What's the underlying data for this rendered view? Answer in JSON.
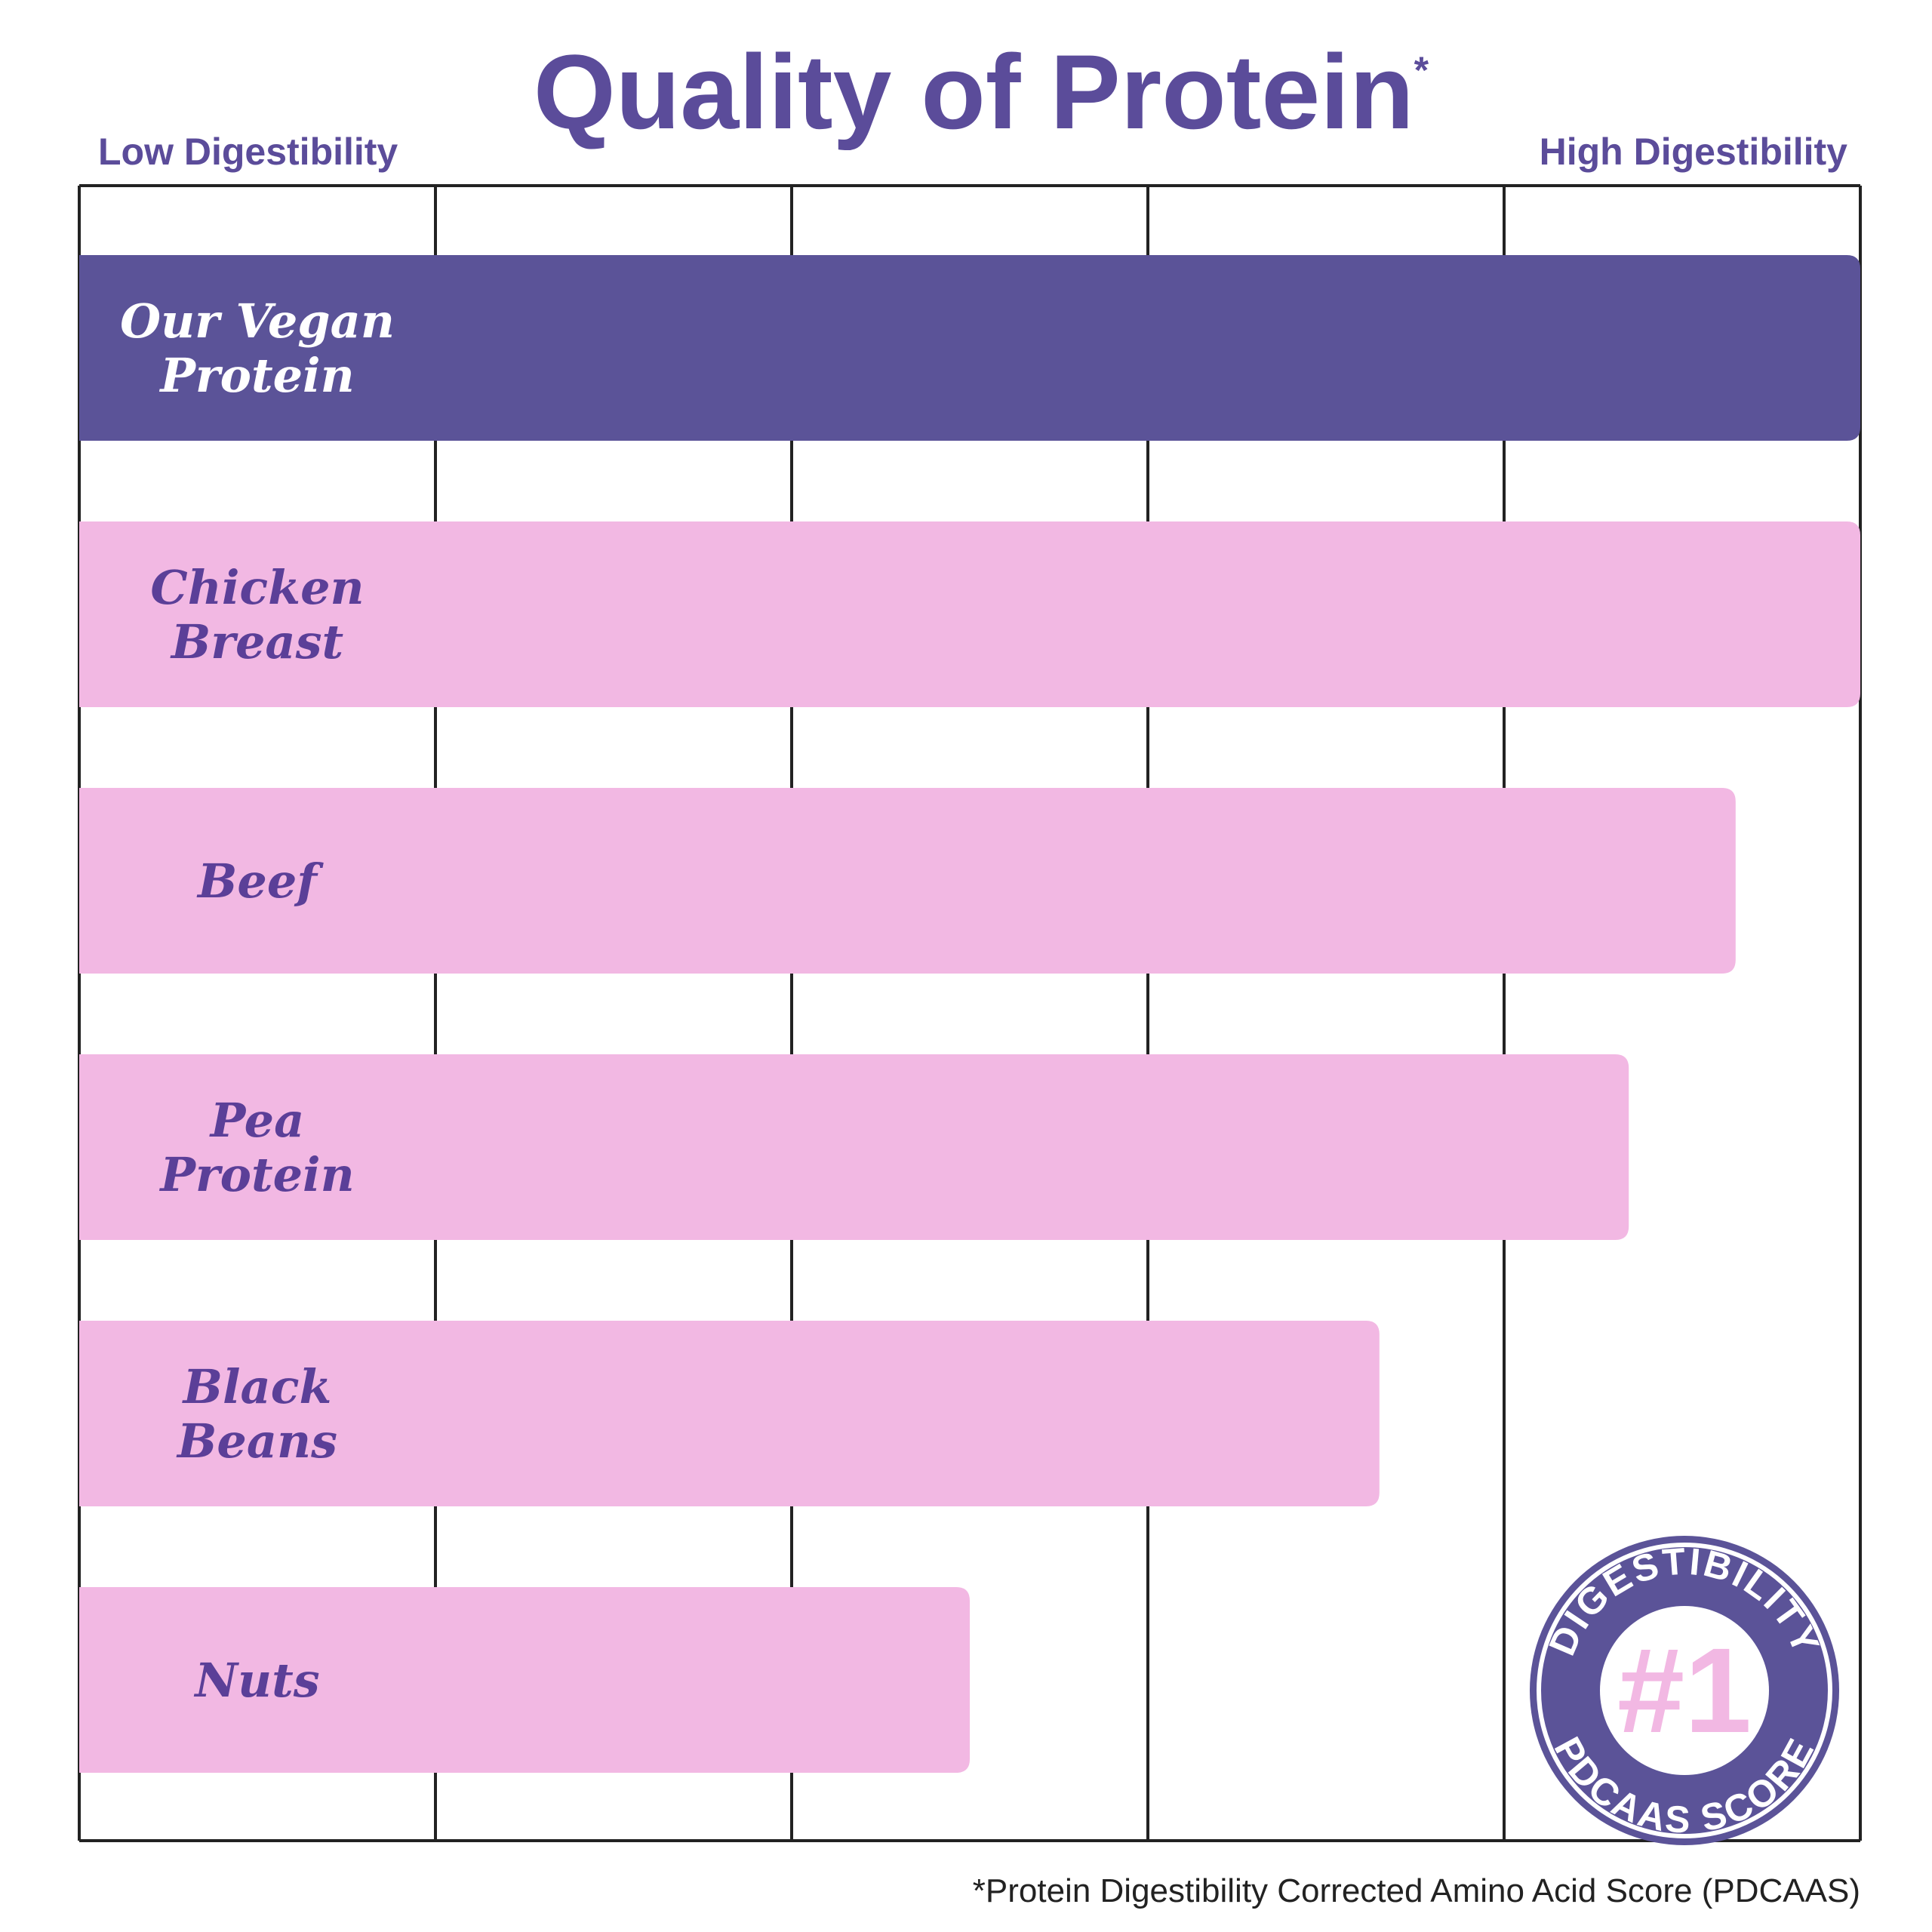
{
  "chart_data": {
    "type": "hbar",
    "title": "Quality of Protein",
    "title_mark": "*",
    "left_label": "Low Digestibility",
    "right_label": "High Digestibility",
    "categories": [
      [
        "Our Vegan",
        "Protein"
      ],
      [
        "Chicken",
        "Breast"
      ],
      [
        "Beef"
      ],
      [
        "Pea",
        "Protein"
      ],
      [
        "Black",
        "Beans"
      ],
      [
        "Nuts"
      ]
    ],
    "values": [
      1,
      1,
      0.93,
      0.87,
      0.73,
      0.5
    ],
    "bar_colors": [
      "#5b5398",
      "#f2b8e3",
      "#f2b8e3",
      "#f2b8e3",
      "#f2b8e3",
      "#f2b8e3"
    ],
    "label_colors": [
      "#ffffff",
      "#5b3f98",
      "#5b3f98",
      "#5b3f98",
      "#5b3f98",
      "#5b3f98"
    ],
    "xlim": [
      0,
      1
    ],
    "xticks": [
      0,
      0.2,
      0.4,
      0.6,
      0.8,
      1
    ],
    "grid": true,
    "badge": {
      "top": "DIGESTIBILITY",
      "center": "#1",
      "bottom": "PDCAAS SCORE"
    },
    "footnote": "*Protein Digestibility Corrected Amino Acid Score (PDCAAS)"
  }
}
